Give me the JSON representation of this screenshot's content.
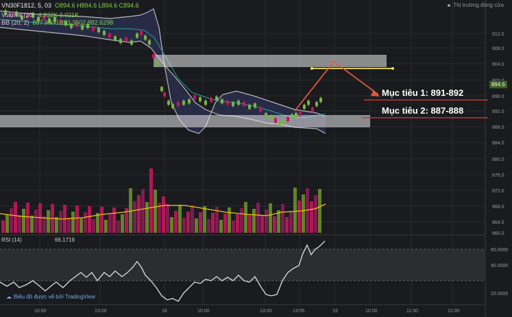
{
  "header": {
    "symbol": "VN30F1812, 5, 03",
    "ohlc": "O894.6  H894.6  L894.6  C894.6",
    "volume_label": "Volume (20)",
    "volume_values": "4.932K  3.021K",
    "bb_label": "BB (20, 2)",
    "bb_values": "887.9900  893.3502  882.6298",
    "status": "Thị trường đóng cửa"
  },
  "targets": {
    "target1": "Mục tiêu 1: 891-892",
    "target2": "Mục tiêu 2: 887-888"
  },
  "price_axis": [
    "912.0",
    "908.0",
    "904.0",
    "900.0",
    "896.0",
    "892.0",
    "888.0",
    "884.0",
    "880.0",
    "876.0",
    "872.0",
    "868.0",
    "864.0",
    "860.0"
  ],
  "current_price": "894.6",
  "rsi": {
    "label": "RSI (14)",
    "value": "66.1719",
    "levels": [
      "60.0000",
      "40.0000",
      "20.0000"
    ]
  },
  "time_axis": [
    "10:00",
    "13:00",
    "18",
    "10:00",
    "13:00",
    "13:55",
    "19",
    "10:00",
    "11:00",
    "12:00"
  ],
  "watermark": "Biểu đồ được vẽ bởi TradingView",
  "colors": {
    "up": "#7cb342",
    "down": "#c2185b",
    "bb": "#b0b0b0",
    "ma": "#26a69a",
    "rsi": "#cfcfcf",
    "target_line": "#c0392b",
    "zone": "#e5e5e5",
    "arrow": "#e05a3a",
    "yellow": "#f1e24a"
  }
}
